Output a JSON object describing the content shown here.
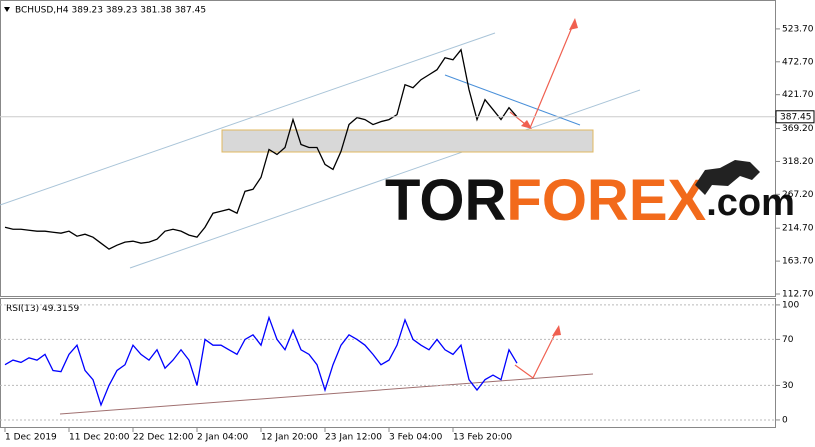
{
  "chart_data": [
    {
      "type": "line",
      "title": "BCHUSD,H4 389.23 389.23 381.38 387.45",
      "color": "#000000",
      "values": [
        216.2,
        213.1,
        213.1,
        211.6,
        210.1,
        210.1,
        208.5,
        207.0,
        210.1,
        202.3,
        205.4,
        200.8,
        191.5,
        182.3,
        188.4,
        193.1,
        194.6,
        191.5,
        193.1,
        197.7,
        210.1,
        213.1,
        210.1,
        204.0,
        200.8,
        216.2,
        237.9,
        241.0,
        244.1,
        237.9,
        271.9,
        275.0,
        293.5,
        336.8,
        329.0,
        339.8,
        383.1,
        344.5,
        339.8,
        339.8,
        313.6,
        305.9,
        333.7,
        375.4,
        386.2,
        383.1,
        375.4,
        380.0,
        383.1,
        390.8,
        437.2,
        432.5,
        444.9,
        452.6,
        460.4,
        478.9,
        475.8,
        491.3,
        429.5,
        383.1,
        414.0,
        398.6,
        383.1,
        401.6,
        387.45
      ],
      "ylim": [
        109.6,
        568.5
      ],
      "yticks": [
        {
          "value": 112.7,
          "label": "112.70"
        },
        {
          "value": 163.7,
          "label": "163.70"
        },
        {
          "value": 214.7,
          "label": "214.70"
        },
        {
          "value": 267.2,
          "label": "267.20"
        },
        {
          "value": 318.2,
          "label": "318.20"
        },
        {
          "value": 369.2,
          "label": "369.20"
        },
        {
          "value": 421.7,
          "label": "421.70"
        },
        {
          "value": 472.7,
          "label": "472.70"
        },
        {
          "value": 523.7,
          "label": "523.70"
        }
      ]
    },
    {
      "type": "line",
      "title": "RSI(13)",
      "color": "#0000ff",
      "categories": [
        "1 Dec 2019",
        null,
        null,
        null,
        null,
        null,
        null,
        null,
        "11 Dec 20:00",
        null,
        null,
        null,
        null,
        null,
        null,
        null,
        "22 Dec 12:00",
        null,
        null,
        null,
        null,
        null,
        null,
        null,
        "2 Jan 04:00",
        null,
        null,
        null,
        null,
        null,
        null,
        null,
        "12 Jan 20:00",
        null,
        null,
        null,
        null,
        null,
        null,
        null,
        "23 Jan 12:00",
        null,
        null,
        null,
        null,
        null,
        null,
        null,
        "3 Feb 04:00",
        null,
        null,
        null,
        null,
        null,
        null,
        null,
        "13 Feb 20:00",
        null,
        null,
        null,
        null,
        null,
        null,
        null,
        null
      ],
      "values": [
        48,
        52,
        50,
        54,
        52,
        57,
        43,
        42,
        57,
        65,
        43,
        35,
        13,
        30,
        43,
        48,
        65,
        57,
        52,
        61,
        45,
        52,
        61,
        52,
        30,
        70,
        65,
        65,
        61,
        57,
        70,
        74,
        65,
        89,
        70,
        61,
        78,
        61,
        57,
        48,
        26,
        48,
        65,
        74,
        70,
        65,
        57,
        48,
        52,
        65,
        87,
        70,
        65,
        61,
        70,
        61,
        57,
        65,
        35,
        26,
        35,
        39,
        35,
        61,
        49.3159
      ],
      "ylim": [
        -7,
        106
      ],
      "yticks": [
        0,
        30,
        70,
        100
      ]
    }
  ],
  "watermark": {
    "parts": [
      "TOR",
      "FOREX",
      ".com"
    ]
  }
}
